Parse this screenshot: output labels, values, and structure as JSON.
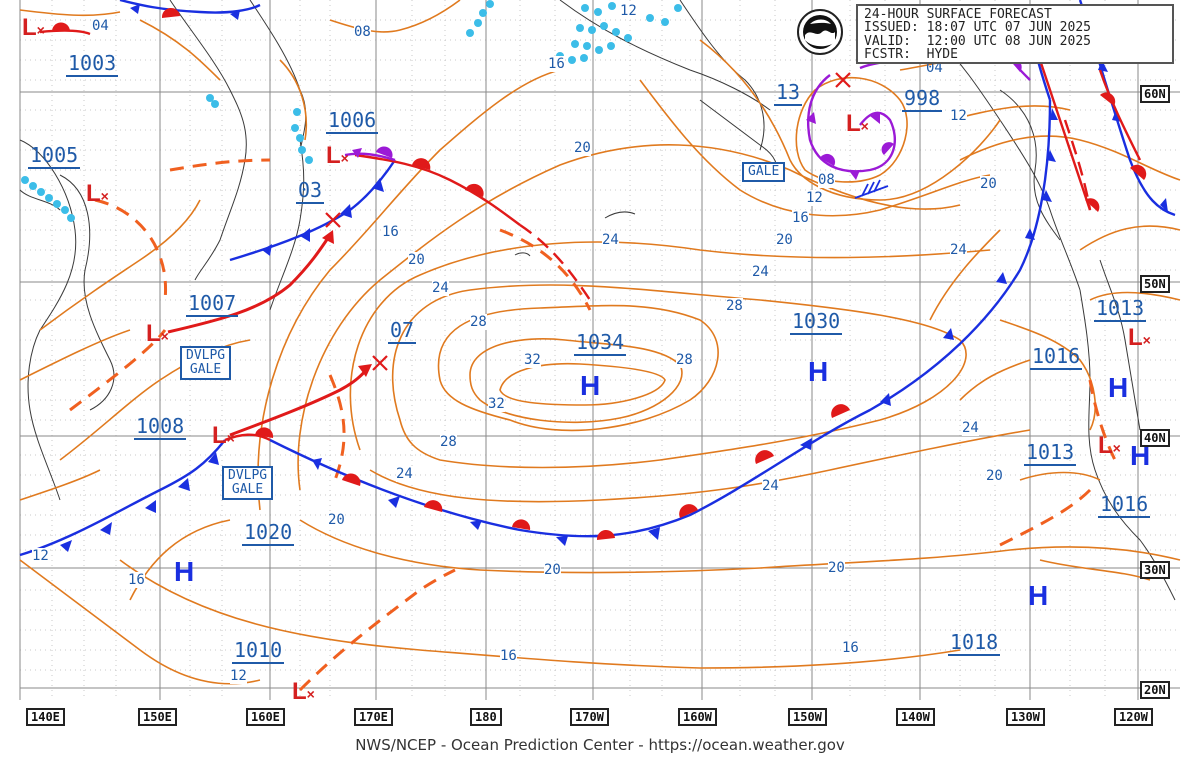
{
  "title_box": {
    "line1": "24-HOUR SURFACE FORECAST",
    "line2": "ISSUED: 18:07 UTC 07 JUN 2025",
    "line3": "VALID:  12:00 UTC 08 JUN 2025",
    "line4": "FCSTR:  HYDE"
  },
  "footer": "NWS/NCEP - Ocean Prediction Center - https://ocean.weather.gov",
  "colors": {
    "isobar": "#e07a1f",
    "cold_front": "#1a2fe0",
    "warm_front": "#e01a1a",
    "occluded": "#9b1ad6",
    "low": "#d42020",
    "high": "#1a2fe0",
    "label_text": "#1f5aa8",
    "ice": "#3cbde8",
    "coast": "#333333"
  },
  "lon_labels": [
    "140E",
    "150E",
    "160E",
    "170E",
    "180",
    "170W",
    "160W",
    "150W",
    "140W",
    "130W",
    "120W"
  ],
  "lat_labels": [
    "60N",
    "50N",
    "40N",
    "30N",
    "20N"
  ],
  "pressure_labels": [
    "1003",
    "1005",
    "1006",
    "03",
    "1007",
    "07",
    "1008",
    "1020",
    "1010",
    "1034",
    "1030",
    "13",
    "998",
    "1013",
    "1016",
    "1013",
    "1016",
    "1018",
    "04"
  ],
  "isobar_labels": [
    "08",
    "16",
    "12",
    "20",
    "24",
    "28",
    "32",
    "32",
    "28",
    "24",
    "20",
    "16",
    "20",
    "24",
    "28",
    "20",
    "16",
    "24",
    "28",
    "12",
    "20",
    "16",
    "24",
    "20",
    "16",
    "12",
    "12",
    "16",
    "20",
    "12",
    "08",
    "04",
    "24",
    "24",
    "20"
  ],
  "warnings": [
    "DVLPG",
    "GALE",
    "DVLPG",
    "GALE",
    "GALE"
  ],
  "high_letter": "H",
  "low_letter": "L"
}
